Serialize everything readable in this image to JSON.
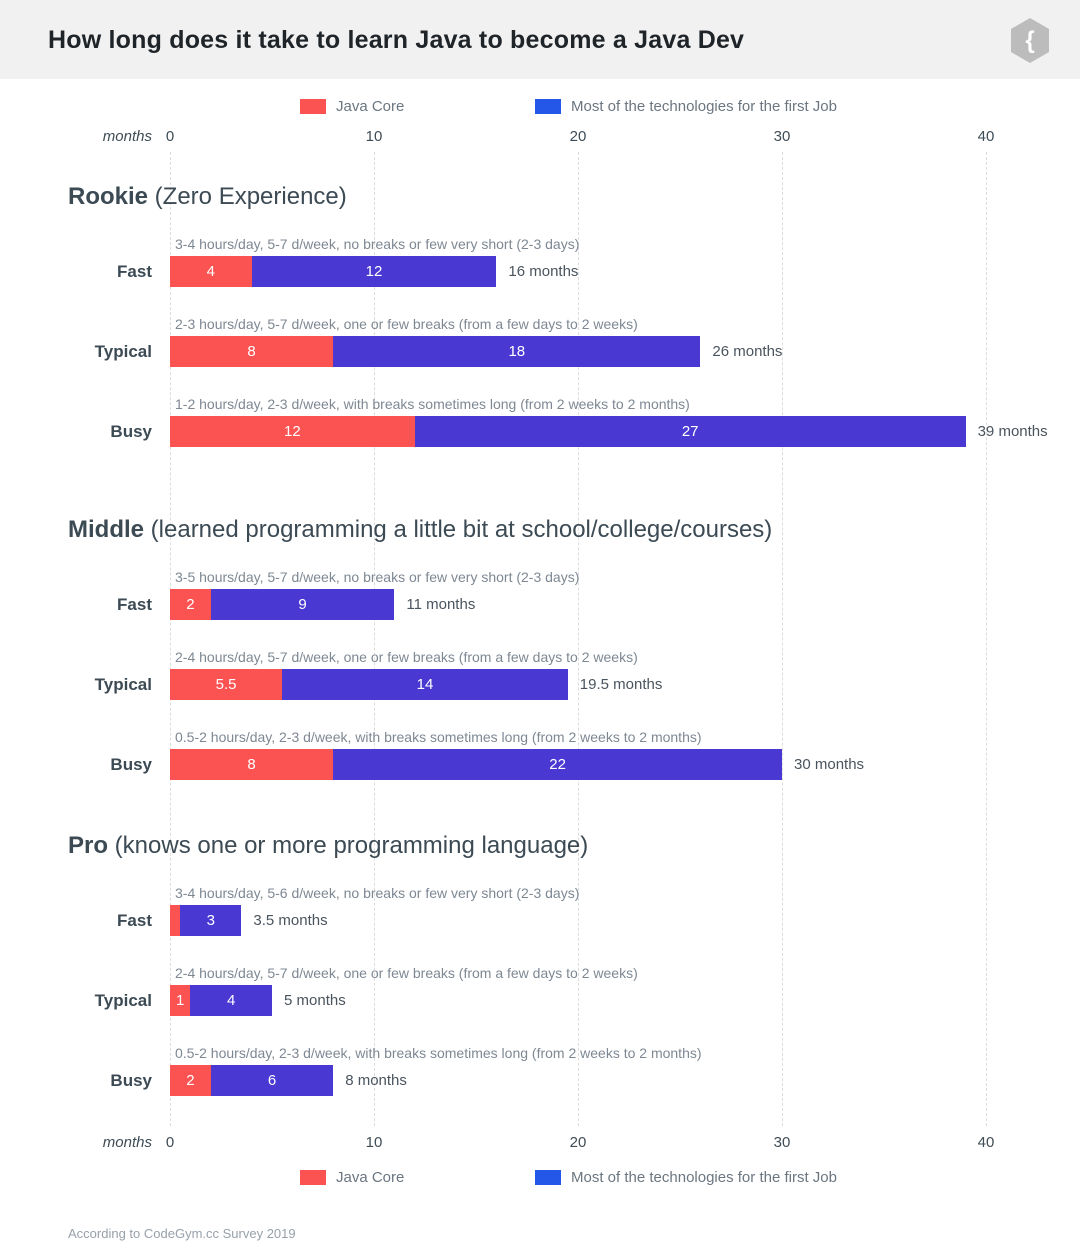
{
  "header": {
    "title": "How long does it take to learn Java to become a Java Dev",
    "logo_glyph": "{"
  },
  "legend": {
    "items": [
      {
        "label": "Java Core",
        "color": "#fb5252"
      },
      {
        "label": "Most of the technologies for the first Job",
        "color": "#2456e8"
      }
    ]
  },
  "axis": {
    "label": "months",
    "ticks": [
      "0",
      "10",
      "20",
      "30",
      "40"
    ]
  },
  "footer": "According to CodeGym.cc Survey 2019",
  "chart_data": {
    "type": "bar",
    "orientation": "horizontal",
    "stacked": true,
    "title": "How long does it take to learn Java to become a Java Dev",
    "xlabel": "months",
    "xlim": [
      0,
      40
    ],
    "xticks": [
      0,
      10,
      20,
      30,
      40
    ],
    "grid": "vertical-dashed",
    "legend_position": "top-and-bottom",
    "series_names": [
      "Java Core",
      "Most of the technologies for the first Job"
    ],
    "colors": {
      "java_core": "#fb5252",
      "technologies_bar": "#4a38d2",
      "technologies_legend": "#2456e8"
    },
    "groups": [
      {
        "name": "Rookie",
        "name_suffix": " (Zero Experience)",
        "rows": [
          {
            "label": "Fast",
            "annotation": "3-4 hours/day, 5-7 d/week, no breaks or few very short (2-3 days)",
            "values": [
              4,
              12
            ],
            "value_labels": [
              "4",
              "12"
            ],
            "total_label": "16 months"
          },
          {
            "label": "Typical",
            "annotation": "2-3 hours/day, 5-7 d/week, one or few breaks (from a few days to 2 weeks)",
            "values": [
              8,
              18
            ],
            "value_labels": [
              "8",
              "18"
            ],
            "total_label": "26 months"
          },
          {
            "label": "Busy",
            "annotation": "1-2 hours/day, 2-3 d/week, with breaks sometimes long (from 2 weeks to 2 months)",
            "values": [
              12,
              27
            ],
            "value_labels": [
              "12",
              "27"
            ],
            "total_label": "39 months"
          }
        ]
      },
      {
        "name": "Middle",
        "name_suffix": " (learned programming a little bit at school/college/courses)",
        "rows": [
          {
            "label": "Fast",
            "annotation": "3-5 hours/day, 5-7 d/week, no breaks or few very short (2-3 days)",
            "values": [
              2,
              9
            ],
            "value_labels": [
              "2",
              "9"
            ],
            "total_label": "11 months"
          },
          {
            "label": "Typical",
            "annotation": "2-4 hours/day, 5-7 d/week, one or few breaks (from a few days to 2 weeks)",
            "values": [
              5.5,
              14
            ],
            "value_labels": [
              "5.5",
              "14"
            ],
            "total_label": "19.5 months"
          },
          {
            "label": "Busy",
            "annotation": "0.5-2 hours/day, 2-3 d/week, with breaks sometimes long (from 2 weeks to 2 months)",
            "values": [
              8,
              22
            ],
            "value_labels": [
              "8",
              "22"
            ],
            "total_label": "30 months"
          }
        ]
      },
      {
        "name": "Pro",
        "name_suffix": " (knows one or more programming language)",
        "rows": [
          {
            "label": "Fast",
            "annotation": "3-4 hours/day, 5-6 d/week, no breaks or few very short (2-3 days)",
            "values": [
              0.5,
              3
            ],
            "value_labels": [
              "",
              "3"
            ],
            "total_label": "3.5 months"
          },
          {
            "label": "Typical",
            "annotation": "2-4 hours/day, 5-7 d/week, one or few breaks (from a few days to 2 weeks)",
            "values": [
              1,
              4
            ],
            "value_labels": [
              "1",
              "4"
            ],
            "total_label": "5 months"
          },
          {
            "label": "Busy",
            "annotation": "0.5-2 hours/day, 2-3 d/week, with breaks sometimes long (from 2 weeks to 2 months)",
            "values": [
              2,
              6
            ],
            "value_labels": [
              "2",
              "6"
            ],
            "total_label": "8 months"
          }
        ]
      }
    ]
  }
}
